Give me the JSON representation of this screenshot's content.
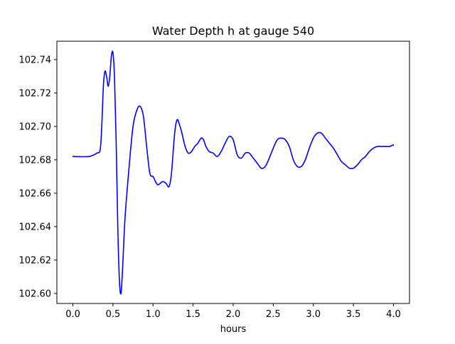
{
  "chart_data": {
    "type": "line",
    "title": "Water Depth h at gauge 540",
    "xlabel": "hours",
    "ylabel": "",
    "xlim": [
      -0.2,
      4.2
    ],
    "ylim": [
      102.594,
      102.751
    ],
    "xticks": [
      0.0,
      0.5,
      1.0,
      1.5,
      2.0,
      2.5,
      3.0,
      3.5,
      4.0
    ],
    "xtick_labels": [
      "0.0",
      "0.5",
      "1.0",
      "1.5",
      "2.0",
      "2.5",
      "3.0",
      "3.5",
      "4.0"
    ],
    "yticks": [
      102.6,
      102.62,
      102.64,
      102.66,
      102.68,
      102.7,
      102.72,
      102.74
    ],
    "ytick_labels": [
      "102.60",
      "102.62",
      "102.64",
      "102.66",
      "102.68",
      "102.70",
      "102.72",
      "102.74"
    ],
    "grid": false,
    "series": [
      {
        "color": "#0000ff",
        "x": [
          0.0,
          0.2,
          0.3,
          0.34,
          0.36,
          0.38,
          0.4,
          0.42,
          0.44,
          0.46,
          0.48,
          0.5,
          0.52,
          0.54,
          0.56,
          0.58,
          0.6,
          0.62,
          0.65,
          0.7,
          0.75,
          0.8,
          0.84,
          0.88,
          0.92,
          0.96,
          1.0,
          1.03,
          1.06,
          1.09,
          1.12,
          1.16,
          1.2,
          1.23,
          1.27,
          1.3,
          1.33,
          1.36,
          1.4,
          1.44,
          1.48,
          1.52,
          1.56,
          1.6,
          1.63,
          1.66,
          1.7,
          1.75,
          1.8,
          1.85,
          1.9,
          1.95,
          2.0,
          2.05,
          2.1,
          2.15,
          2.2,
          2.25,
          2.3,
          2.35,
          2.4,
          2.45,
          2.5,
          2.55,
          2.6,
          2.65,
          2.7,
          2.75,
          2.8,
          2.85,
          2.9,
          2.95,
          3.0,
          3.05,
          3.1,
          3.15,
          3.2,
          3.25,
          3.3,
          3.35,
          3.4,
          3.45,
          3.5,
          3.55,
          3.6,
          3.65,
          3.7,
          3.75,
          3.8,
          3.85,
          3.9,
          3.95,
          4.0
        ],
        "y": [
          102.682,
          102.682,
          102.684,
          102.686,
          102.7,
          102.724,
          102.733,
          102.73,
          102.724,
          102.73,
          102.742,
          102.744,
          102.728,
          102.69,
          102.64,
          102.608,
          102.6,
          102.615,
          102.645,
          102.675,
          102.7,
          102.71,
          102.712,
          102.706,
          102.688,
          102.672,
          102.67,
          102.667,
          102.665,
          102.666,
          102.667,
          102.666,
          102.664,
          102.672,
          102.696,
          102.704,
          102.701,
          102.696,
          102.688,
          102.684,
          102.685,
          102.688,
          102.69,
          102.693,
          102.692,
          102.688,
          102.685,
          102.684,
          102.682,
          102.685,
          102.69,
          102.694,
          102.692,
          102.683,
          102.681,
          102.684,
          102.684,
          102.681,
          102.678,
          102.675,
          102.676,
          102.681,
          102.687,
          102.692,
          102.693,
          102.692,
          102.688,
          102.68,
          102.676,
          102.676,
          102.68,
          102.687,
          102.693,
          102.696,
          102.696,
          102.693,
          102.69,
          102.687,
          102.683,
          102.679,
          102.677,
          102.675,
          102.675,
          102.677,
          102.68,
          102.682,
          102.685,
          102.687,
          102.688,
          102.688,
          102.688,
          102.688,
          102.689
        ]
      }
    ]
  }
}
